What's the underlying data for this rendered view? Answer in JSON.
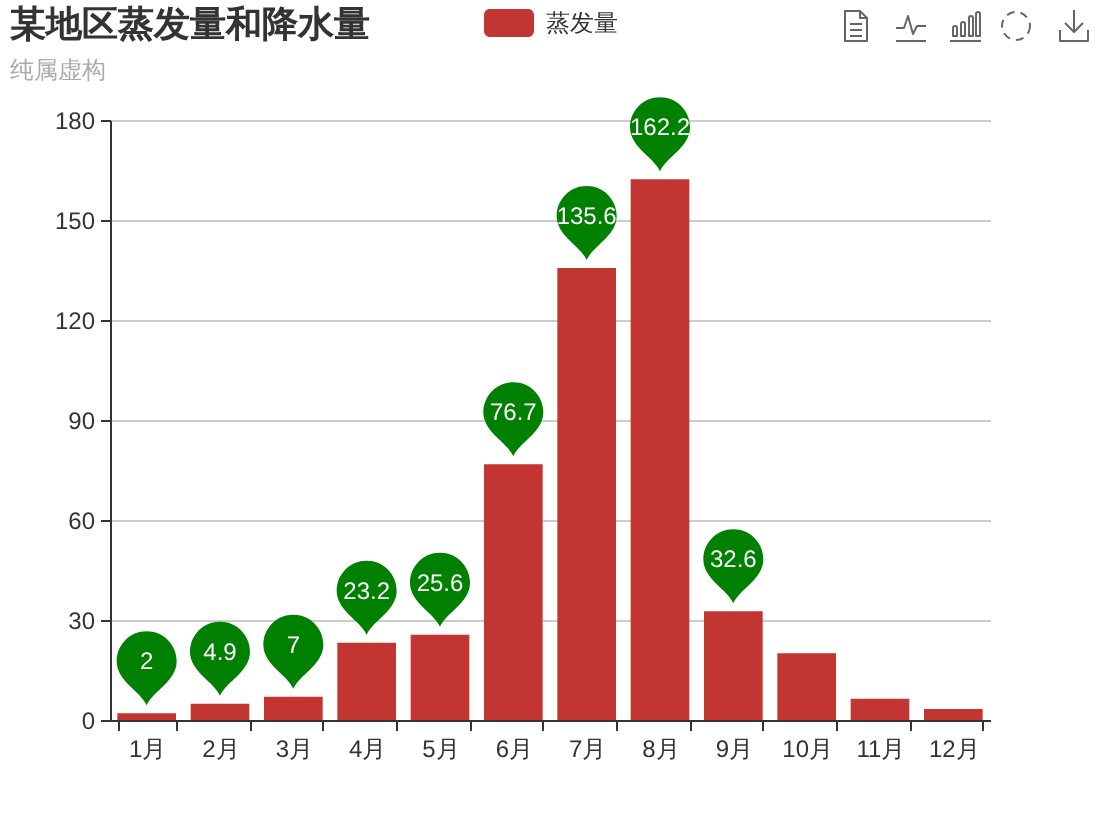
{
  "chart_data": {
    "type": "bar",
    "title": "某地区蒸发量和降水量",
    "subtitle": "纯属虚构",
    "categories": [
      "1月",
      "2月",
      "3月",
      "4月",
      "5月",
      "6月",
      "7月",
      "8月",
      "9月",
      "10月",
      "11月",
      "12月"
    ],
    "series": [
      {
        "name": "蒸发量",
        "color": "#c23531",
        "values": [
          2,
          4.9,
          7,
          23.2,
          25.6,
          76.7,
          135.6,
          162.2,
          32.6,
          20,
          6.4,
          3.3
        ],
        "value_labels": [
          "2",
          "4.9",
          "7",
          "23.2",
          "25.6",
          "76.7",
          "135.6",
          "162.2",
          "32.6",
          null,
          null,
          null
        ]
      }
    ],
    "ylim": [
      0,
      180
    ],
    "yticks": [
      0,
      30,
      60,
      90,
      120,
      150,
      180
    ],
    "grid": "y",
    "legend": "top"
  }
}
